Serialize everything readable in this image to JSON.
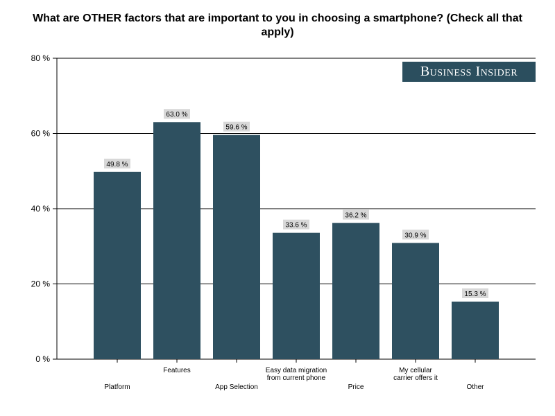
{
  "chart_data": {
    "type": "bar",
    "title": "What are OTHER factors that are important to you in choosing a smartphone? (Check all that apply)",
    "xlabel": "",
    "ylabel": "",
    "ylim": [
      0,
      80
    ],
    "yticks": [
      0,
      20,
      40,
      60,
      80
    ],
    "ytick_labels": [
      "0 %",
      "20 %",
      "40 %",
      "60 %",
      "80 %"
    ],
    "grid": true,
    "bar_color": "#2e5060",
    "label_bg_color": "#d8d8d8",
    "categories": [
      {
        "label": [
          "Platform"
        ],
        "row": "low"
      },
      {
        "label": [
          "Features"
        ],
        "row": "high"
      },
      {
        "label": [
          "App Selection"
        ],
        "row": "low"
      },
      {
        "label": [
          "Easy data migration",
          "from current phone"
        ],
        "row": "high"
      },
      {
        "label": [
          "Price"
        ],
        "row": "low"
      },
      {
        "label": [
          "My cellular",
          "carrier offers it"
        ],
        "row": "high"
      },
      {
        "label": [
          "Other"
        ],
        "row": "low"
      }
    ],
    "values": [
      49.8,
      63.0,
      59.6,
      33.6,
      36.2,
      30.9,
      15.3
    ],
    "value_labels": [
      "49.8 %",
      "63.0 %",
      "59.6 %",
      "33.6 %",
      "36.2 %",
      "30.9 %",
      "15.3 %"
    ]
  },
  "branding": {
    "logo_text": "Business Insider"
  }
}
